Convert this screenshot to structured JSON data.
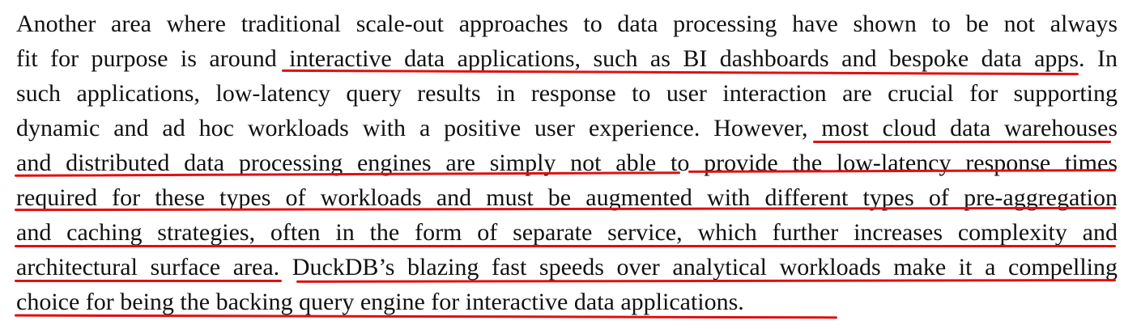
{
  "paragraph": {
    "lines": [
      "Another area where traditional scale-out approaches to data processing have shown to be not always",
      "fit for purpose is around interactive data applications, such as BI dashboards and bespoke data apps. In",
      "such applications, low-latency query results in response to user interaction are crucial for supporting",
      "dynamic and ad hoc workloads with a positive user experience. However, most cloud data warehouses",
      "and distributed data processing engines are simply not able to provide the low-latency response times",
      "required for these types of workloads and must be augmented with different types of pre-aggregation",
      "and caching strategies, often in the form of separate service, which further increases complexity and",
      "architectural surface area. DuckDB’s blazing fast speeds over analytical workloads make it a compelling",
      "choice for being the backing query engine for interactive data applications."
    ]
  },
  "annotation": {
    "underline_color": "#e01010"
  }
}
